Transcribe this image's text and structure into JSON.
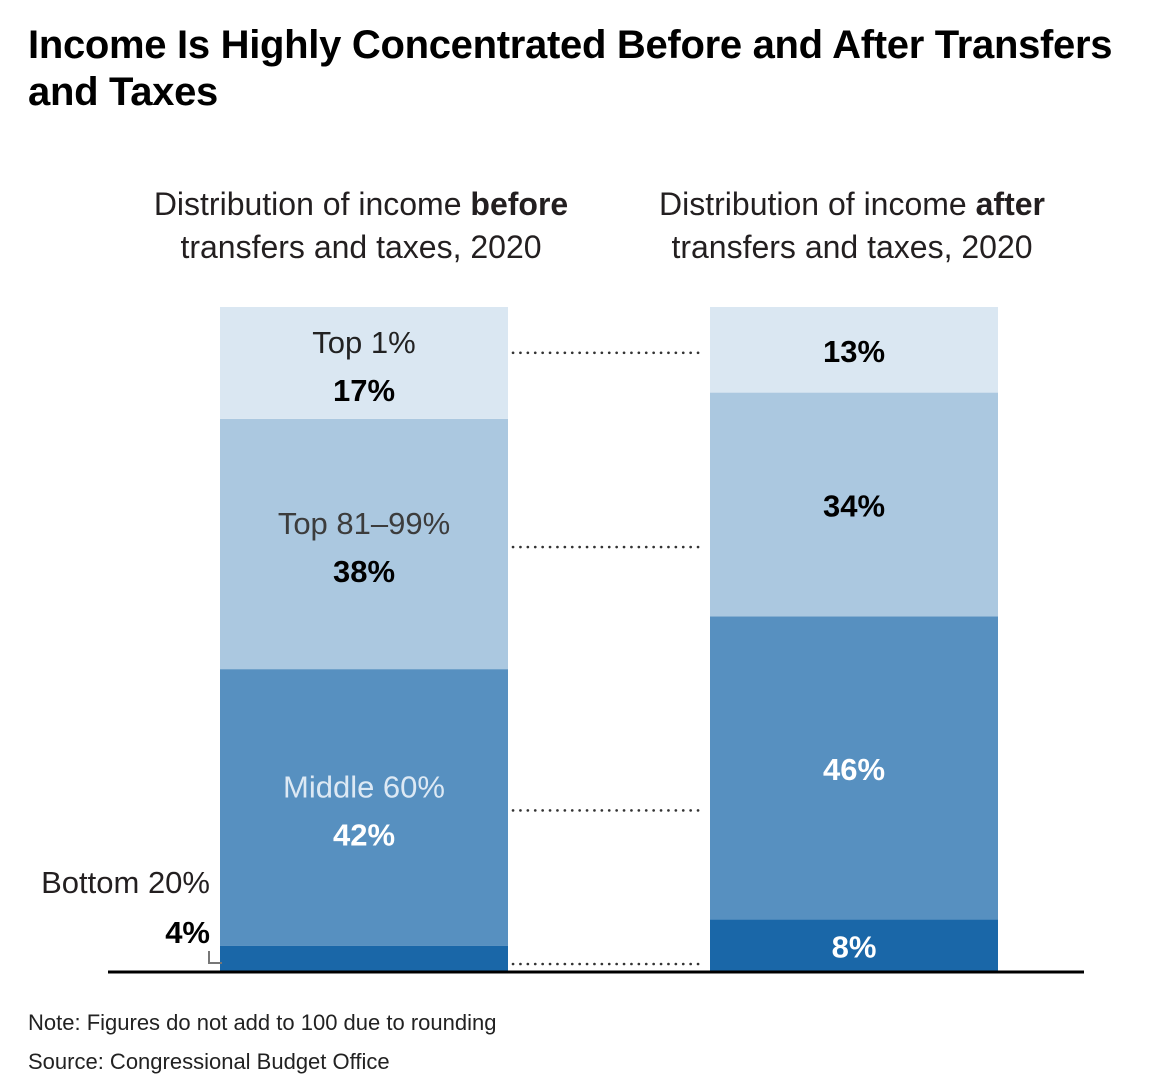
{
  "title": "Income Is Highly Concentrated Before and After Transfers and Taxes",
  "chart_data": {
    "type": "bar",
    "stacked": true,
    "percent_of_total": true,
    "categories": [
      {
        "lead": "Distribution of income ",
        "bold": "before",
        "tail": "transfers and taxes, 2020"
      },
      {
        "lead": "Distribution of income ",
        "bold": "after",
        "tail": "transfers and taxes, 2020"
      }
    ],
    "series": [
      {
        "name": "Bottom 20%",
        "values": [
          4,
          8
        ],
        "color": "#1a67a8"
      },
      {
        "name": "Middle 60%",
        "values": [
          42,
          46
        ],
        "color": "#5790c0"
      },
      {
        "name": "Top 81–99%",
        "values": [
          38,
          34
        ],
        "color": "#abc8e0"
      },
      {
        "name": "Top 1%",
        "values": [
          17,
          13
        ],
        "color": "#dae7f2"
      }
    ],
    "connectors": "dotted",
    "grid": false
  },
  "notes": {
    "note": "Note: Figures do not add to 100 due to rounding",
    "source": "Source: Congressional Budget Office"
  }
}
